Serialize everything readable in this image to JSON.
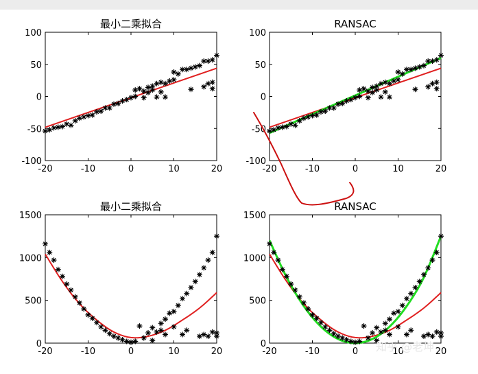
{
  "chart_data": [
    {
      "type": "scatter",
      "title": "最小二乘拟合",
      "xlim": [
        -20,
        20
      ],
      "ylim": [
        -100,
        100
      ],
      "xticks": [
        -20,
        -10,
        0,
        10,
        20
      ],
      "yticks": [
        100,
        50,
        0,
        -50,
        -100
      ],
      "marker": "asterisk",
      "points": [
        [
          -20,
          -54
        ],
        [
          -19,
          -52
        ],
        [
          -18,
          -49
        ],
        [
          -17,
          -48
        ],
        [
          -16,
          -47
        ],
        [
          -15,
          -43
        ],
        [
          -14,
          -45
        ],
        [
          -13,
          -38
        ],
        [
          -12,
          -34
        ],
        [
          -11,
          -32
        ],
        [
          -10,
          -30
        ],
        [
          -9,
          -29
        ],
        [
          -8,
          -24
        ],
        [
          -7,
          -23
        ],
        [
          -6,
          -18
        ],
        [
          -5,
          -18
        ],
        [
          -4,
          -12
        ],
        [
          -3,
          -11
        ],
        [
          -2,
          -7
        ],
        [
          -1,
          -5
        ],
        [
          0,
          -2
        ],
        [
          1,
          0
        ],
        [
          1,
          10
        ],
        [
          2,
          12
        ],
        [
          3,
          -2
        ],
        [
          3,
          8
        ],
        [
          4,
          6
        ],
        [
          4,
          14
        ],
        [
          5,
          10
        ],
        [
          5,
          16
        ],
        [
          6,
          -1
        ],
        [
          6,
          20
        ],
        [
          7,
          7
        ],
        [
          7,
          22
        ],
        [
          8,
          -1
        ],
        [
          8,
          20
        ],
        [
          9,
          24
        ],
        [
          10,
          26
        ],
        [
          10,
          38
        ],
        [
          11,
          35
        ],
        [
          12,
          42
        ],
        [
          13,
          42
        ],
        [
          14,
          44
        ],
        [
          14,
          11
        ],
        [
          15,
          46
        ],
        [
          16,
          48
        ],
        [
          17,
          15
        ],
        [
          17,
          55
        ],
        [
          18,
          55
        ],
        [
          18,
          20
        ],
        [
          19,
          57
        ],
        [
          19,
          22
        ],
        [
          19,
          12
        ],
        [
          20,
          64
        ]
      ],
      "fit_line": [
        [
          -20,
          -48
        ],
        [
          20,
          44
        ]
      ],
      "line_color": "#e02020"
    },
    {
      "type": "scatter",
      "title": "RANSAC",
      "xlim": [
        -20,
        20
      ],
      "ylim": [
        -100,
        100
      ],
      "xticks": [
        -20,
        -10,
        0,
        10,
        20
      ],
      "yticks": [
        100,
        50,
        0,
        -50,
        -100
      ],
      "marker": "asterisk",
      "points": [
        [
          -20,
          -54
        ],
        [
          -19,
          -52
        ],
        [
          -18,
          -49
        ],
        [
          -17,
          -48
        ],
        [
          -16,
          -47
        ],
        [
          -15,
          -43
        ],
        [
          -14,
          -45
        ],
        [
          -13,
          -38
        ],
        [
          -12,
          -34
        ],
        [
          -11,
          -32
        ],
        [
          -10,
          -30
        ],
        [
          -9,
          -29
        ],
        [
          -8,
          -24
        ],
        [
          -7,
          -23
        ],
        [
          -6,
          -18
        ],
        [
          -5,
          -18
        ],
        [
          -4,
          -12
        ],
        [
          -3,
          -11
        ],
        [
          -2,
          -7
        ],
        [
          -1,
          -5
        ],
        [
          0,
          -2
        ],
        [
          1,
          0
        ],
        [
          1,
          10
        ],
        [
          2,
          12
        ],
        [
          3,
          -2
        ],
        [
          3,
          8
        ],
        [
          4,
          6
        ],
        [
          4,
          14
        ],
        [
          5,
          10
        ],
        [
          5,
          16
        ],
        [
          6,
          -1
        ],
        [
          6,
          20
        ],
        [
          7,
          7
        ],
        [
          7,
          22
        ],
        [
          8,
          -1
        ],
        [
          8,
          20
        ],
        [
          9,
          24
        ],
        [
          10,
          26
        ],
        [
          10,
          38
        ],
        [
          11,
          35
        ],
        [
          12,
          42
        ],
        [
          13,
          42
        ],
        [
          14,
          44
        ],
        [
          14,
          11
        ],
        [
          15,
          46
        ],
        [
          16,
          48
        ],
        [
          17,
          15
        ],
        [
          17,
          55
        ],
        [
          18,
          55
        ],
        [
          18,
          20
        ],
        [
          19,
          57
        ],
        [
          19,
          22
        ],
        [
          19,
          12
        ],
        [
          20,
          64
        ]
      ],
      "fit_line": [
        [
          -20,
          -48
        ],
        [
          20,
          44
        ]
      ],
      "ransac_line": [
        [
          -20,
          -57
        ],
        [
          20,
          60
        ]
      ],
      "line_color": "#e02020",
      "ransac_color": "#22dd22"
    },
    {
      "type": "scatter",
      "title": "最小二乘拟合",
      "xlim": [
        -20,
        20
      ],
      "ylim": [
        0,
        1500
      ],
      "xticks": [
        -20,
        -10,
        0,
        10,
        20
      ],
      "yticks": [
        1500,
        1000,
        500,
        0
      ],
      "marker": "asterisk",
      "points": [
        [
          -20,
          1160
        ],
        [
          -19,
          1060
        ],
        [
          -18,
          970
        ],
        [
          -17,
          860
        ],
        [
          -16,
          780
        ],
        [
          -15,
          690
        ],
        [
          -14,
          620
        ],
        [
          -13,
          540
        ],
        [
          -12,
          470
        ],
        [
          -11,
          400
        ],
        [
          -10,
          330
        ],
        [
          -9,
          290
        ],
        [
          -8,
          240
        ],
        [
          -7,
          190
        ],
        [
          -6,
          150
        ],
        [
          -5,
          110
        ],
        [
          -4,
          80
        ],
        [
          -3,
          60
        ],
        [
          -2,
          40
        ],
        [
          -1,
          20
        ],
        [
          0,
          10
        ],
        [
          1,
          20
        ],
        [
          2,
          200
        ],
        [
          3,
          60
        ],
        [
          4,
          120
        ],
        [
          5,
          30
        ],
        [
          5,
          180
        ],
        [
          6,
          130
        ],
        [
          7,
          150
        ],
        [
          7,
          230
        ],
        [
          8,
          100
        ],
        [
          8,
          280
        ],
        [
          9,
          350
        ],
        [
          10,
          190
        ],
        [
          10,
          370
        ],
        [
          11,
          440
        ],
        [
          12,
          100
        ],
        [
          12,
          520
        ],
        [
          13,
          150
        ],
        [
          13,
          580
        ],
        [
          14,
          650
        ],
        [
          15,
          720
        ],
        [
          16,
          80
        ],
        [
          16,
          800
        ],
        [
          17,
          880
        ],
        [
          17,
          100
        ],
        [
          18,
          970
        ],
        [
          18,
          80
        ],
        [
          19,
          1060
        ],
        [
          19,
          130
        ],
        [
          20,
          1250
        ],
        [
          20,
          80
        ],
        [
          20,
          120
        ]
      ],
      "fit_curve": [
        [
          -20,
          1040
        ],
        [
          -16,
          720
        ],
        [
          -12,
          460
        ],
        [
          -8,
          270
        ],
        [
          -4,
          130
        ],
        [
          0,
          65
        ],
        [
          4,
          80
        ],
        [
          8,
          150
        ],
        [
          12,
          270
        ],
        [
          16,
          410
        ],
        [
          20,
          590
        ]
      ],
      "line_color": "#e02020"
    },
    {
      "type": "scatter",
      "title": "RANSAC",
      "xlim": [
        -20,
        20
      ],
      "ylim": [
        0,
        1500
      ],
      "xticks": [
        -20,
        -10,
        0,
        10,
        20
      ],
      "yticks": [
        1500,
        1000,
        500,
        0
      ],
      "marker": "asterisk",
      "points": [
        [
          -20,
          1160
        ],
        [
          -19,
          1060
        ],
        [
          -18,
          970
        ],
        [
          -17,
          860
        ],
        [
          -16,
          780
        ],
        [
          -15,
          690
        ],
        [
          -14,
          620
        ],
        [
          -13,
          540
        ],
        [
          -12,
          470
        ],
        [
          -11,
          400
        ],
        [
          -10,
          330
        ],
        [
          -9,
          290
        ],
        [
          -8,
          240
        ],
        [
          -7,
          190
        ],
        [
          -6,
          150
        ],
        [
          -5,
          110
        ],
        [
          -4,
          80
        ],
        [
          -3,
          60
        ],
        [
          -2,
          40
        ],
        [
          -1,
          20
        ],
        [
          0,
          10
        ],
        [
          1,
          20
        ],
        [
          2,
          200
        ],
        [
          3,
          60
        ],
        [
          4,
          120
        ],
        [
          5,
          30
        ],
        [
          5,
          180
        ],
        [
          6,
          130
        ],
        [
          7,
          150
        ],
        [
          7,
          230
        ],
        [
          8,
          100
        ],
        [
          8,
          280
        ],
        [
          9,
          350
        ],
        [
          10,
          190
        ],
        [
          10,
          370
        ],
        [
          11,
          440
        ],
        [
          12,
          100
        ],
        [
          12,
          520
        ],
        [
          13,
          150
        ],
        [
          13,
          580
        ],
        [
          14,
          650
        ],
        [
          15,
          720
        ],
        [
          16,
          80
        ],
        [
          16,
          800
        ],
        [
          17,
          880
        ],
        [
          17,
          100
        ],
        [
          18,
          970
        ],
        [
          18,
          80
        ],
        [
          19,
          1060
        ],
        [
          19,
          130
        ],
        [
          20,
          1250
        ],
        [
          20,
          80
        ],
        [
          20,
          120
        ]
      ],
      "fit_curve": [
        [
          -20,
          1040
        ],
        [
          -16,
          720
        ],
        [
          -12,
          460
        ],
        [
          -8,
          270
        ],
        [
          -4,
          130
        ],
        [
          0,
          65
        ],
        [
          4,
          80
        ],
        [
          8,
          150
        ],
        [
          12,
          270
        ],
        [
          16,
          410
        ],
        [
          20,
          590
        ]
      ],
      "ransac_curve": [
        [
          -20,
          1200
        ],
        [
          -16,
          768
        ],
        [
          -12,
          432
        ],
        [
          -8,
          192
        ],
        [
          -4,
          48
        ],
        [
          0,
          0
        ],
        [
          4,
          48
        ],
        [
          8,
          192
        ],
        [
          12,
          432
        ],
        [
          16,
          768
        ],
        [
          20,
          1250
        ]
      ],
      "line_color": "#e02020",
      "ransac_color": "#22dd22"
    }
  ],
  "watermark": "知乎 @老坤",
  "annotation_color": "#cc1111"
}
